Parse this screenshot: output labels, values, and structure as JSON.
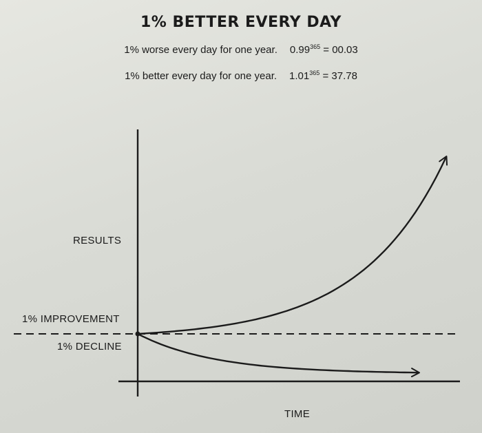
{
  "title": "1% BETTER EVERY DAY",
  "formulas": [
    {
      "text": "1% worse every day for one year.",
      "base": "0.99",
      "exponent": "365",
      "result": "= 00.03"
    },
    {
      "text": "1% better every day for one year.",
      "base": "1.01",
      "exponent": "365",
      "result": "= 37.78"
    }
  ],
  "chart_data": {
    "type": "line",
    "title": "1% BETTER EVERY DAY",
    "xlabel": "TIME",
    "ylabel": "RESULTS",
    "xlim": [
      0,
      365
    ],
    "baseline": 1,
    "series": [
      {
        "name": "1% IMPROVEMENT",
        "rate": 0.01,
        "end_value": 37.78
      },
      {
        "name": "1% DECLINE",
        "rate": -0.01,
        "end_value": 0.03
      }
    ],
    "annotations": [
      "1% IMPROVEMENT",
      "1% DECLINE"
    ],
    "grid": false,
    "baseline_style": "dashed"
  },
  "colors": {
    "ink": "#1b1b1b",
    "paper": "#dcded8"
  }
}
